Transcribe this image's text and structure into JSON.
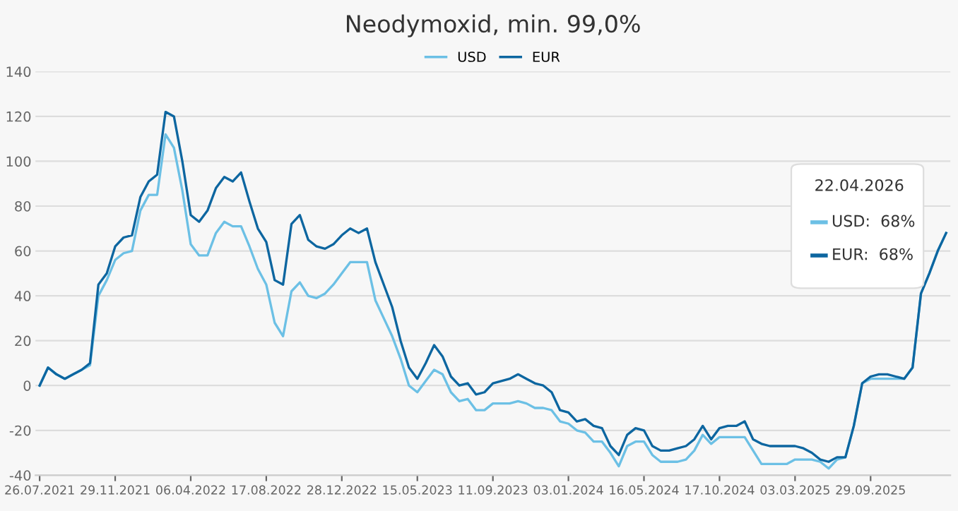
{
  "chart_data": {
    "type": "line",
    "title": "Neodymoxid, min. 99,0%",
    "categories": [
      "26.07.2021",
      null,
      null,
      null,
      null,
      null,
      null,
      null,
      null,
      "29.11.2021",
      null,
      null,
      null,
      null,
      null,
      null,
      null,
      null,
      "06.04.2022",
      null,
      null,
      null,
      null,
      null,
      null,
      null,
      null,
      "17.08.2022",
      null,
      null,
      null,
      null,
      null,
      null,
      null,
      null,
      "28.12.2022",
      null,
      null,
      null,
      null,
      null,
      null,
      null,
      null,
      "15.05.2023",
      null,
      null,
      null,
      null,
      null,
      null,
      null,
      null,
      "11.09.2023",
      null,
      null,
      null,
      null,
      null,
      null,
      null,
      null,
      "03.01.2024",
      null,
      null,
      null,
      null,
      null,
      null,
      null,
      null,
      "16.05.2024",
      null,
      null,
      null,
      null,
      null,
      null,
      null,
      null,
      "17.10.2024",
      null,
      null,
      null,
      null,
      null,
      null,
      null,
      null,
      "03.03.2025",
      null,
      null,
      null,
      null,
      null,
      null,
      null,
      null,
      "29.09.2025",
      null,
      null,
      null,
      null,
      null,
      null,
      null,
      null,
      null
    ],
    "series": [
      {
        "name": "USD",
        "color": "#6cc0e5",
        "values": [
          0,
          8,
          5,
          3,
          5,
          7,
          9,
          40,
          47,
          56,
          59,
          60,
          78,
          85,
          85,
          112,
          106,
          87,
          63,
          58,
          58,
          68,
          73,
          71,
          71,
          62,
          52,
          45,
          28,
          22,
          42,
          46,
          40,
          39,
          41,
          45,
          50,
          55,
          55,
          55,
          38,
          30,
          22,
          12,
          0,
          -3,
          2,
          7,
          5,
          -3,
          -7,
          -6,
          -11,
          -11,
          -8,
          -8,
          -8,
          -7,
          -8,
          -10,
          -10,
          -11,
          -16,
          -17,
          -20,
          -21,
          -25,
          -25,
          -30,
          -36,
          -27,
          -25,
          -25,
          -31,
          -34,
          -34,
          -34,
          -33,
          -29,
          -22,
          -26,
          -23,
          -23,
          -23,
          -23,
          -29,
          -35,
          -35,
          -35,
          -35,
          -33,
          -33,
          -33,
          -34,
          -37,
          -33,
          -32,
          -18,
          1,
          3,
          3,
          3,
          3,
          3,
          8,
          41,
          50,
          60,
          68
        ]
      },
      {
        "name": "EUR",
        "color": "#0d66a0",
        "values": [
          0,
          8,
          5,
          3,
          5,
          7,
          10,
          45,
          50,
          62,
          66,
          67,
          84,
          91,
          94,
          122,
          120,
          100,
          76,
          73,
          78,
          88,
          93,
          91,
          95,
          82,
          70,
          64,
          47,
          45,
          72,
          76,
          65,
          62,
          61,
          63,
          67,
          70,
          68,
          70,
          55,
          45,
          35,
          20,
          8,
          3,
          10,
          18,
          13,
          4,
          0,
          1,
          -4,
          -3,
          1,
          2,
          3,
          5,
          3,
          1,
          0,
          -3,
          -11,
          -12,
          -16,
          -15,
          -18,
          -19,
          -27,
          -31,
          -22,
          -19,
          -20,
          -27,
          -29,
          -29,
          -28,
          -27,
          -24,
          -18,
          -24,
          -19,
          -18,
          -18,
          -16,
          -24,
          -26,
          -27,
          -27,
          -27,
          -27,
          -28,
          -30,
          -33,
          -34,
          -32,
          -32,
          -18,
          1,
          4,
          5,
          5,
          4,
          3,
          8,
          41,
          50,
          60,
          68
        ]
      }
    ],
    "ylim": [
      -40,
      140
    ],
    "yticks": [
      -40,
      -20,
      0,
      20,
      40,
      60,
      80,
      100,
      120,
      140
    ],
    "grid": "y",
    "legend": "top",
    "marker": "none",
    "line_style": "solid",
    "annotations": [
      "22.04.2026",
      "USD:  68%",
      "EUR:  68%"
    ]
  }
}
